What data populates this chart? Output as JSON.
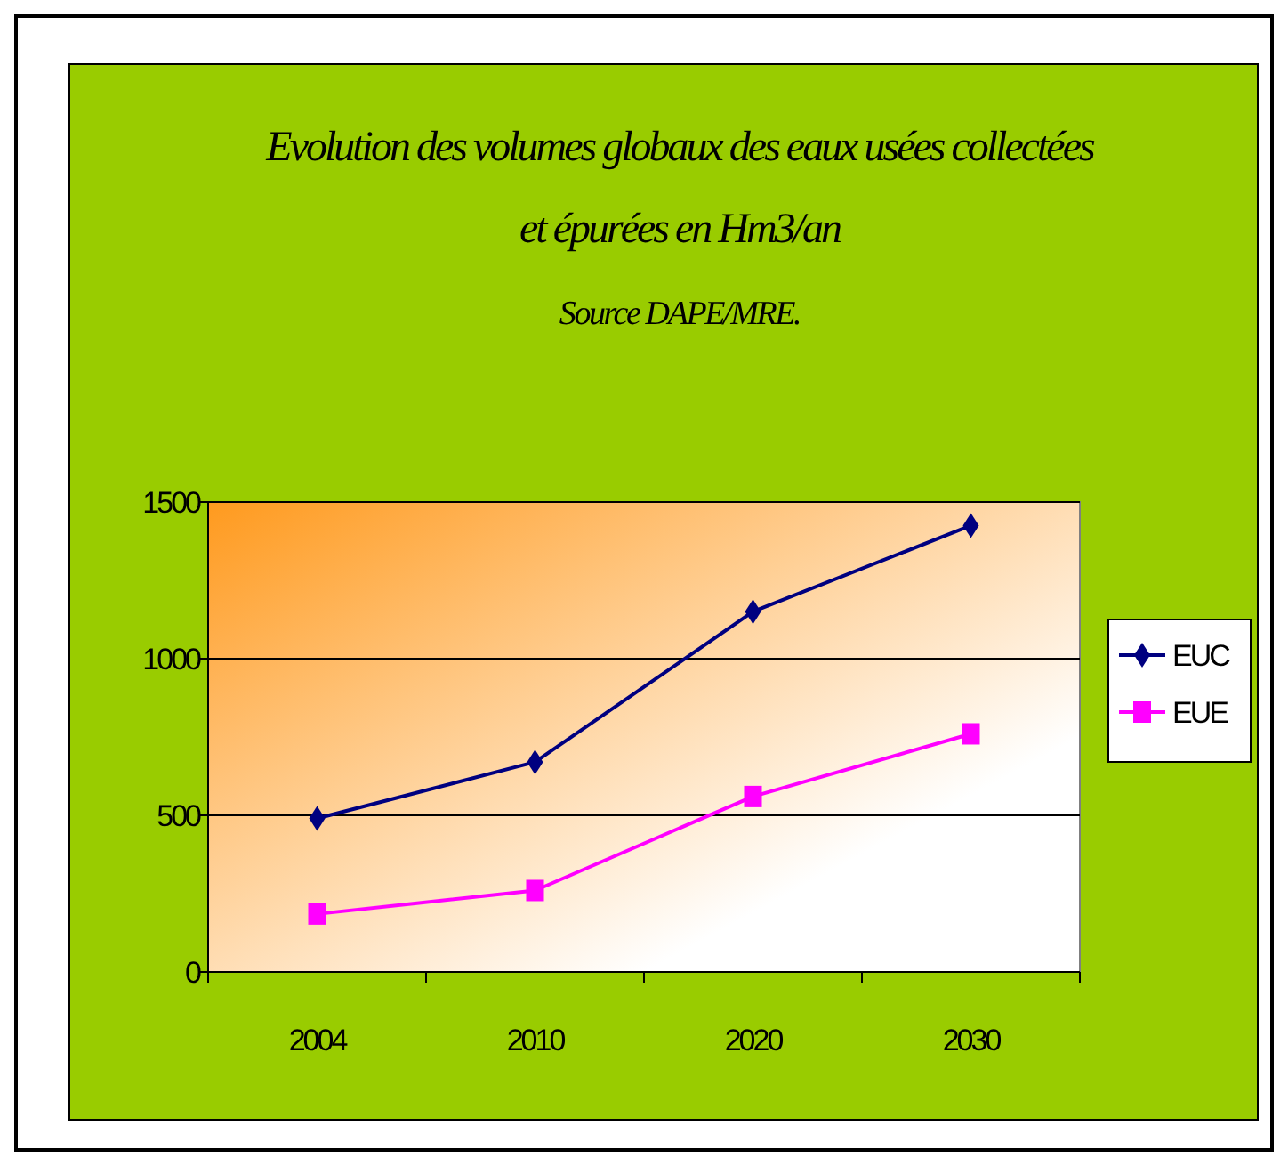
{
  "chart_data": {
    "type": "line",
    "title": "Evolution des volumes globaux des eaux usées collectées et épurées en Hm3/an",
    "annotations": [
      "Source DAPE/MRE."
    ],
    "categories": [
      "2004",
      "2010",
      "2020",
      "2030"
    ],
    "series": [
      {
        "name": "EUC",
        "color": "#000080",
        "marker": "diamond",
        "values": [
          490,
          670,
          1150,
          1425
        ]
      },
      {
        "name": "EUE",
        "color": "#ff00ff",
        "marker": "square",
        "values": [
          185,
          260,
          560,
          760
        ]
      }
    ],
    "ylim": [
      0,
      1500
    ],
    "yticks": [
      0,
      500,
      1000,
      1500
    ],
    "grid": "y",
    "legend": "right",
    "line_style": "solid"
  }
}
